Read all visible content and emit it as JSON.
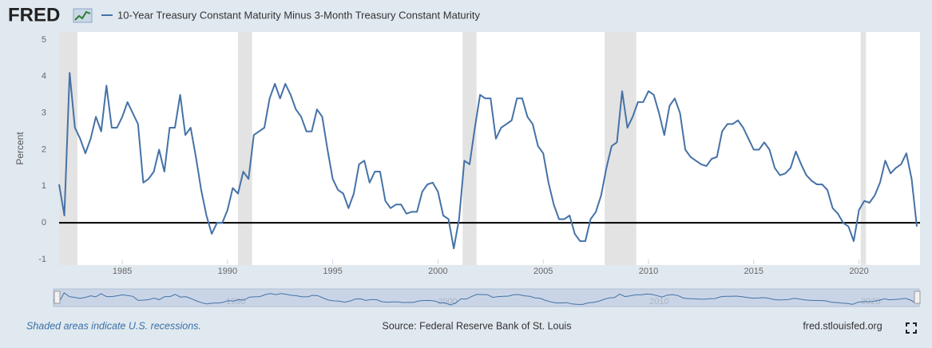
{
  "logo": "FRED",
  "chart_data": {
    "type": "line",
    "ylabel": "Percent",
    "x": [
      1982,
      1982.25,
      1982.5,
      1982.75,
      1983,
      1983.25,
      1983.5,
      1983.75,
      1984,
      1984.25,
      1984.5,
      1984.75,
      1985,
      1985.25,
      1985.5,
      1985.75,
      1986,
      1986.25,
      1986.5,
      1986.75,
      1987,
      1987.25,
      1987.5,
      1987.75,
      1988,
      1988.25,
      1988.5,
      1988.75,
      1989,
      1989.25,
      1989.5,
      1989.75,
      1990,
      1990.25,
      1990.5,
      1990.75,
      1991,
      1991.25,
      1991.5,
      1991.75,
      1992,
      1992.25,
      1992.5,
      1992.75,
      1993,
      1993.25,
      1993.5,
      1993.75,
      1994,
      1994.25,
      1994.5,
      1994.75,
      1995,
      1995.25,
      1995.5,
      1995.75,
      1996,
      1996.25,
      1996.5,
      1996.75,
      1997,
      1997.25,
      1997.5,
      1997.75,
      1998,
      1998.25,
      1998.5,
      1998.75,
      1999,
      1999.25,
      1999.5,
      1999.75,
      2000,
      2000.25,
      2000.5,
      2000.75,
      2001,
      2001.25,
      2001.5,
      2001.75,
      2002,
      2002.25,
      2002.5,
      2002.75,
      2003,
      2003.25,
      2003.5,
      2003.75,
      2004,
      2004.25,
      2004.5,
      2004.75,
      2005,
      2005.25,
      2005.5,
      2005.75,
      2006,
      2006.25,
      2006.5,
      2006.75,
      2007,
      2007.25,
      2007.5,
      2007.75,
      2008,
      2008.25,
      2008.5,
      2008.75,
      2009,
      2009.25,
      2009.5,
      2009.75,
      2010,
      2010.25,
      2010.5,
      2010.75,
      2011,
      2011.25,
      2011.5,
      2011.75,
      2012,
      2012.25,
      2012.5,
      2012.75,
      2013,
      2013.25,
      2013.5,
      2013.75,
      2014,
      2014.25,
      2014.5,
      2014.75,
      2015,
      2015.25,
      2015.5,
      2015.75,
      2016,
      2016.25,
      2016.5,
      2016.75,
      2017,
      2017.25,
      2017.5,
      2017.75,
      2018,
      2018.25,
      2018.5,
      2018.75,
      2019,
      2019.25,
      2019.5,
      2019.75,
      2020,
      2020.25,
      2020.5,
      2020.75,
      2021,
      2021.25,
      2021.5,
      2021.75,
      2022,
      2022.25,
      2022.5,
      2022.75
    ],
    "series": [
      {
        "name": "10-Year Treasury Constant Maturity Minus 3-Month Treasury Constant Maturity",
        "color": "#4572a7",
        "values": [
          1.05,
          0.2,
          4.1,
          2.6,
          2.3,
          1.9,
          2.3,
          2.9,
          2.5,
          3.75,
          2.6,
          2.6,
          2.9,
          3.3,
          3.0,
          2.7,
          1.1,
          1.2,
          1.4,
          2.0,
          1.4,
          2.6,
          2.6,
          3.5,
          2.4,
          2.6,
          1.8,
          0.9,
          0.2,
          -0.3,
          0.0,
          0.0,
          0.35,
          0.95,
          0.8,
          1.4,
          1.2,
          2.4,
          2.5,
          2.6,
          3.4,
          3.8,
          3.4,
          3.8,
          3.5,
          3.1,
          2.9,
          2.5,
          2.5,
          3.1,
          2.9,
          2.0,
          1.2,
          0.9,
          0.8,
          0.4,
          0.8,
          1.6,
          1.7,
          1.1,
          1.4,
          1.4,
          0.6,
          0.4,
          0.5,
          0.5,
          0.25,
          0.3,
          0.3,
          0.85,
          1.05,
          1.1,
          0.85,
          0.2,
          0.1,
          -0.7,
          0.1,
          1.7,
          1.6,
          2.6,
          3.5,
          3.4,
          3.4,
          2.3,
          2.6,
          2.7,
          2.8,
          3.4,
          3.4,
          2.9,
          2.7,
          2.1,
          1.9,
          1.1,
          0.5,
          0.1,
          0.1,
          0.2,
          -0.3,
          -0.5,
          -0.5,
          0.1,
          0.3,
          0.75,
          1.5,
          2.1,
          2.2,
          3.6,
          2.6,
          2.9,
          3.3,
          3.3,
          3.6,
          3.5,
          3.0,
          2.4,
          3.2,
          3.4,
          3.0,
          2.0,
          1.8,
          1.7,
          1.6,
          1.55,
          1.75,
          1.8,
          2.5,
          2.7,
          2.7,
          2.8,
          2.6,
          2.3,
          2.0,
          2.0,
          2.2,
          2.0,
          1.5,
          1.3,
          1.35,
          1.5,
          1.95,
          1.6,
          1.3,
          1.15,
          1.05,
          1.05,
          0.9,
          0.4,
          0.25,
          0.0,
          -0.1,
          -0.5,
          0.35,
          0.6,
          0.55,
          0.75,
          1.1,
          1.7,
          1.35,
          1.5,
          1.6,
          1.9,
          1.2,
          -0.1
        ]
      }
    ],
    "xlim": [
      1982,
      2022.9
    ],
    "xticks": [
      1985,
      1990,
      1995,
      2000,
      2005,
      2010,
      2015,
      2020
    ],
    "ylim": [
      -1,
      5
    ],
    "yticks": [
      -1,
      0,
      1,
      2,
      3,
      4,
      5
    ],
    "recessions": [
      [
        1982,
        1982.87
      ],
      [
        1990.5,
        1991.17
      ],
      [
        2001.17,
        2001.83
      ],
      [
        2007.92,
        2009.42
      ],
      [
        2020.08,
        2020.33
      ]
    ],
    "recession_color": "#e3e3e3"
  },
  "footer": {
    "note": "Shaded areas indicate U.S. recessions.",
    "source": "Source: Federal Reserve Bank of St. Louis",
    "url": "fred.stlouisfed.org"
  }
}
